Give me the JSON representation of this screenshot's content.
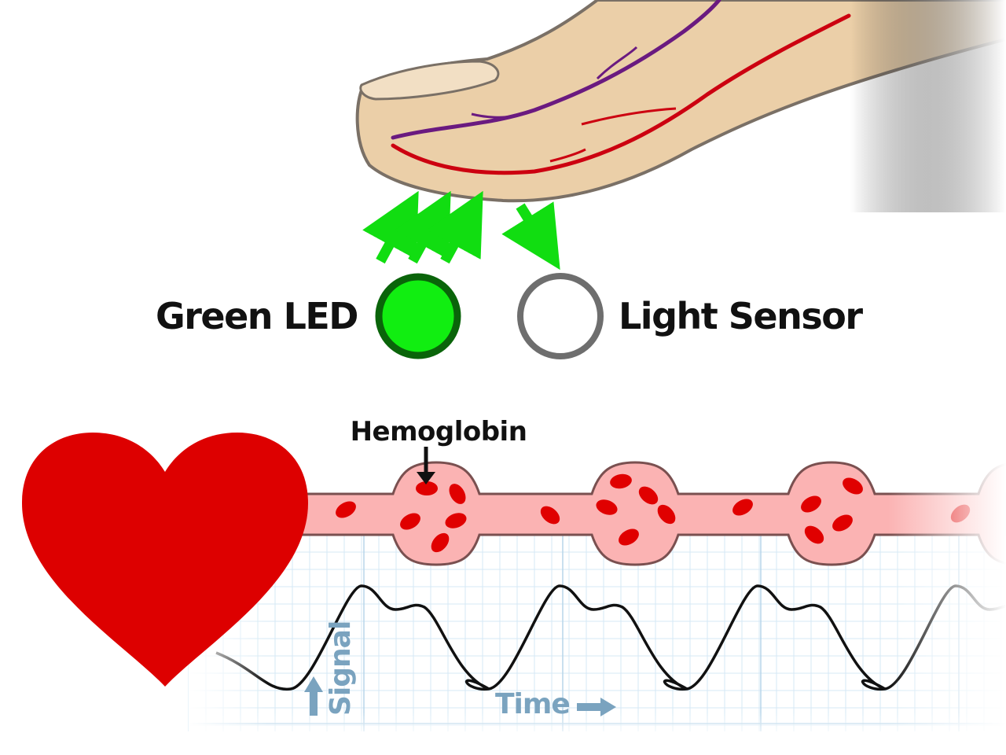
{
  "labels": {
    "led": "Green LED",
    "sensor": "Light Sensor",
    "hemoglobin": "Hemoglobin",
    "signal_axis": "Signal",
    "time_axis": "Time"
  },
  "colors": {
    "led_fill": "#11ee11",
    "led_stroke": "#0a640a",
    "arrow_green": "#11dd11",
    "sensor_stroke": "#6e6e6e",
    "heart": "#dd0000",
    "vessel_fill": "#fbb3b3",
    "vessel_stroke": "#7a5050",
    "hemoglobin_cell": "#e00000",
    "skin": "#ebcfa8",
    "vein": "#6a1a80",
    "artery": "#cc0010",
    "grid": "#d5e9f5",
    "signal_line": "#111111",
    "axis_label": "#7aa3bf"
  },
  "icons": {
    "heart": "heart-icon",
    "finger": "finger-illustration",
    "up_arrow": "arrow-up-icon",
    "right_arrow": "arrow-right-icon"
  }
}
